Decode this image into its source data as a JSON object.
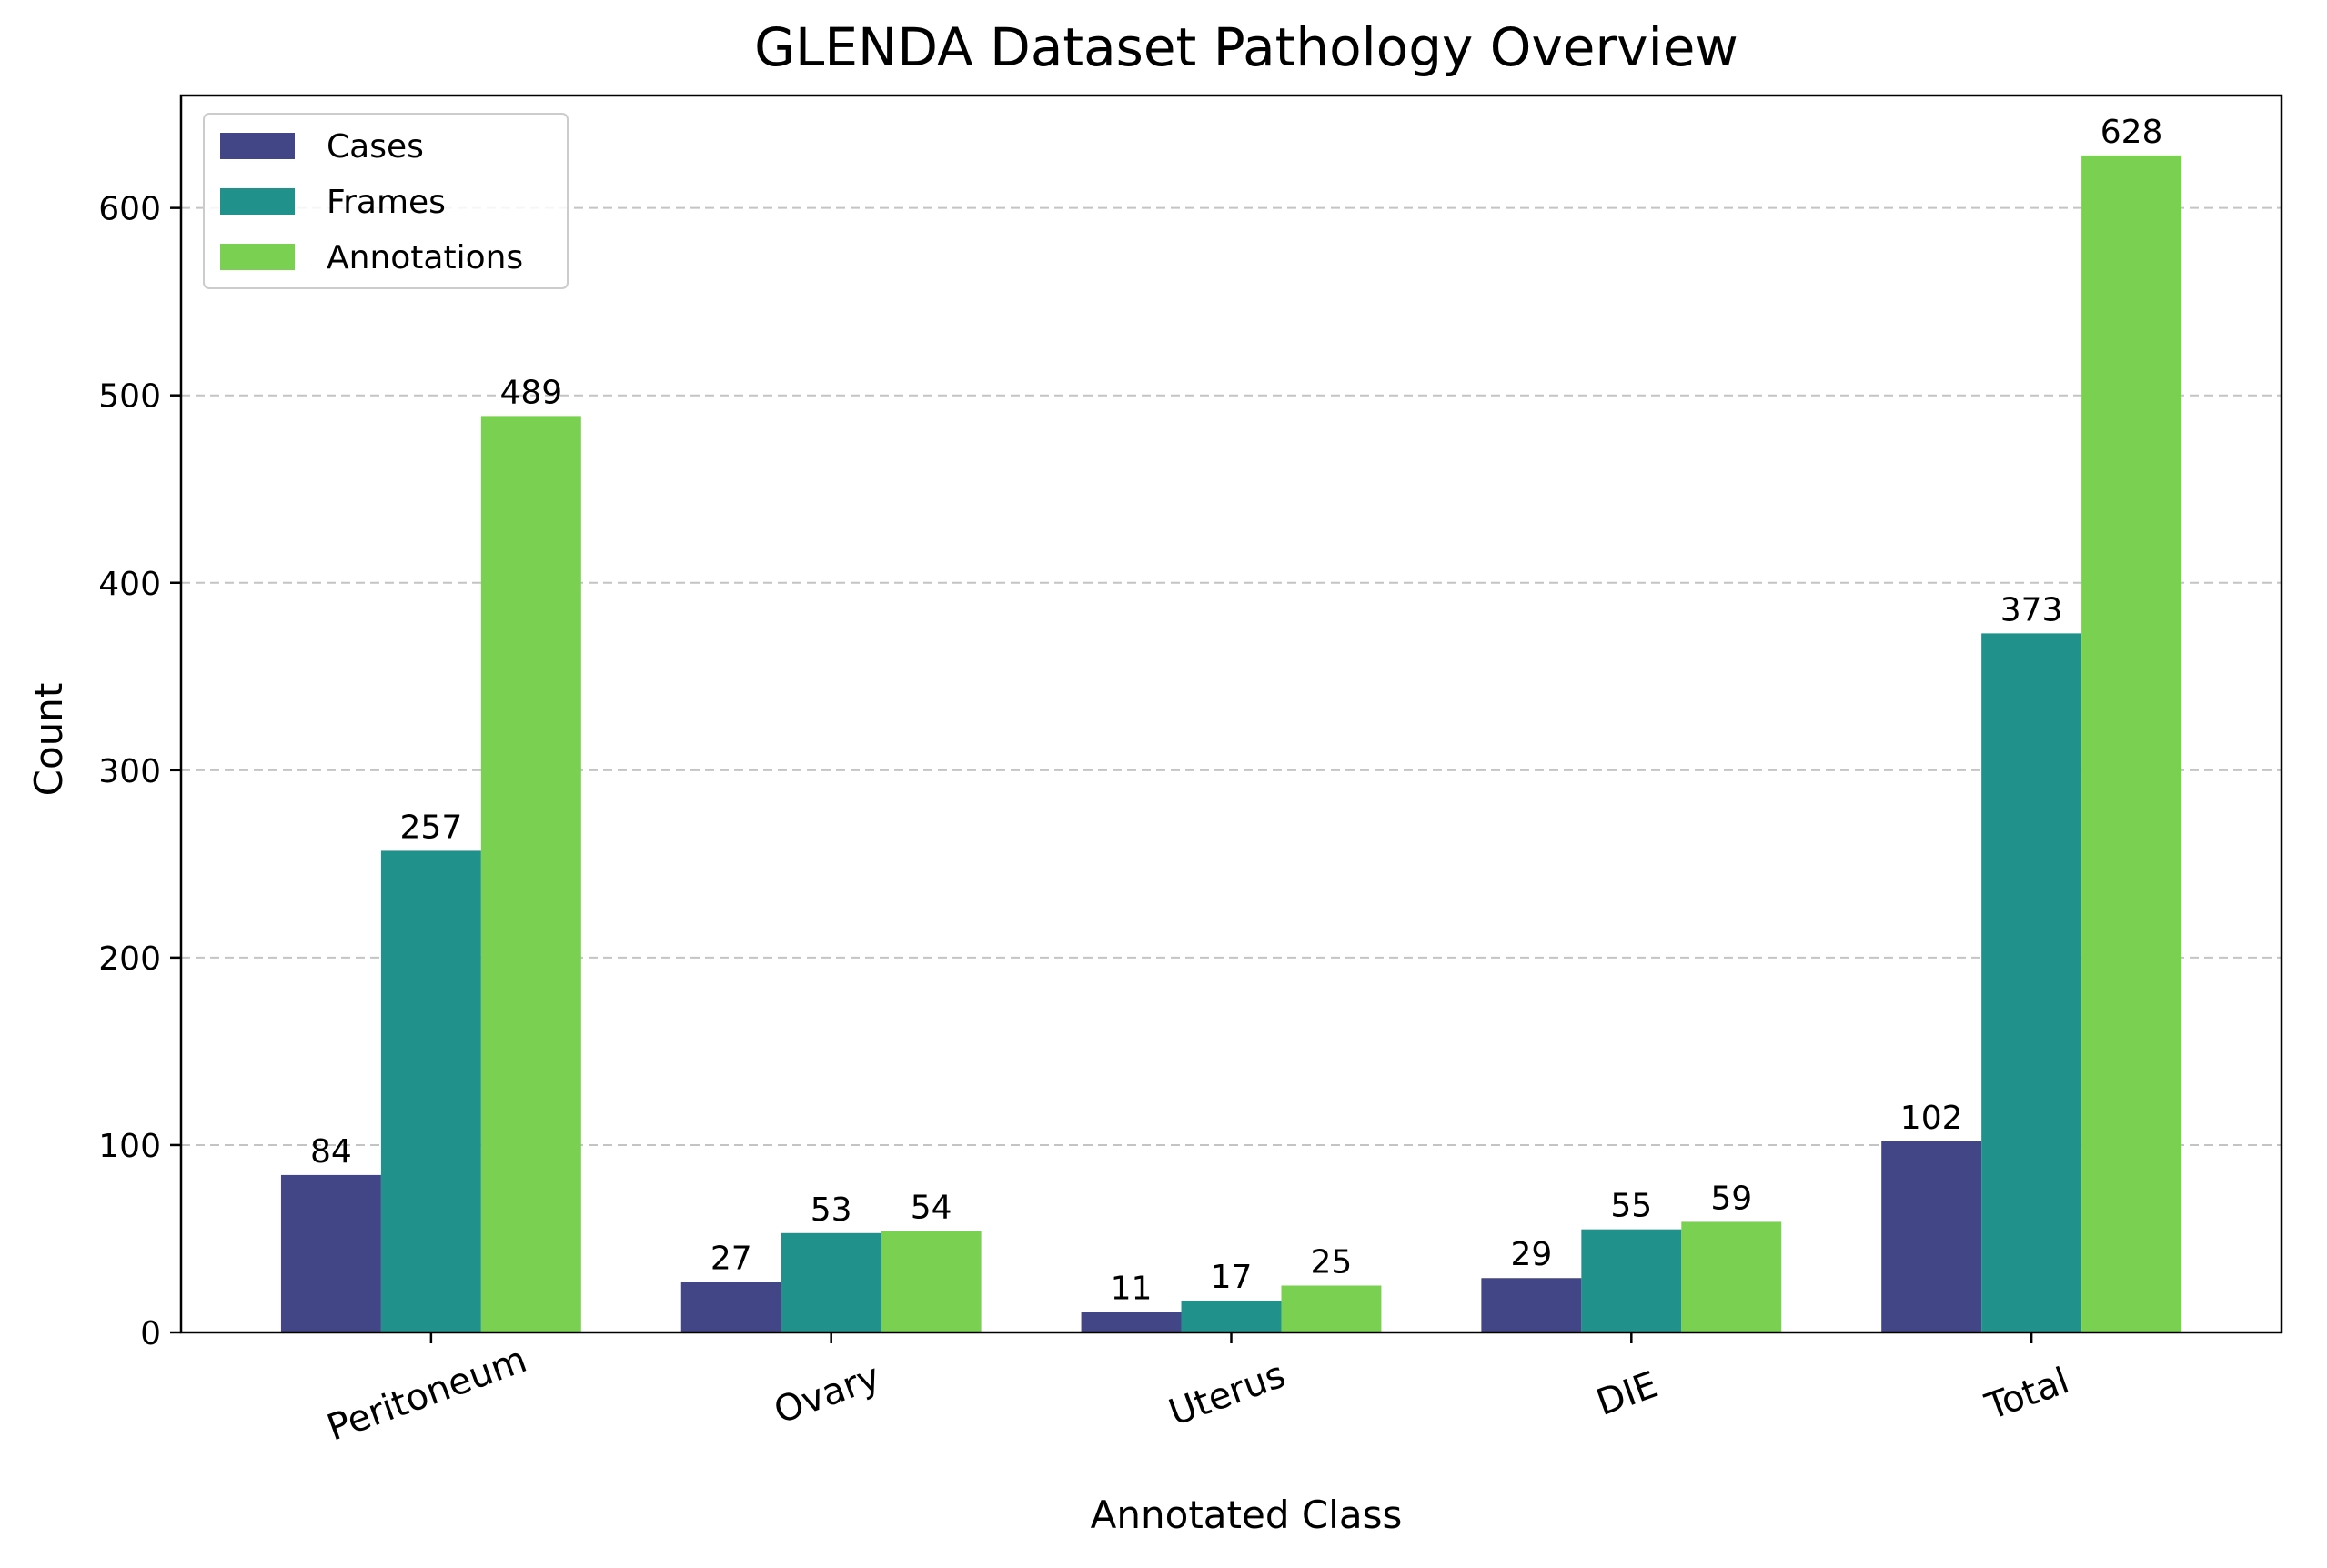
{
  "chart_data": {
    "type": "bar",
    "title": "GLENDA Dataset Pathology Overview",
    "xlabel": "Annotated Class",
    "ylabel": "Count",
    "categories": [
      "Peritoneum",
      "Ovary",
      "Uterus",
      "DIE",
      "Total"
    ],
    "series": [
      {
        "name": "Cases",
        "color": "#424686",
        "values": [
          84,
          27,
          11,
          29,
          102
        ]
      },
      {
        "name": "Frames",
        "color": "#21918c",
        "values": [
          257,
          53,
          17,
          55,
          373
        ]
      },
      {
        "name": "Annotations",
        "color": "#7ad151",
        "values": [
          489,
          54,
          25,
          59,
          628
        ]
      }
    ],
    "ylim": [
      0,
      660
    ],
    "yticks": [
      0,
      100,
      200,
      300,
      400,
      500,
      600
    ],
    "grid": "y-dashed",
    "legend_position": "upper-left"
  }
}
